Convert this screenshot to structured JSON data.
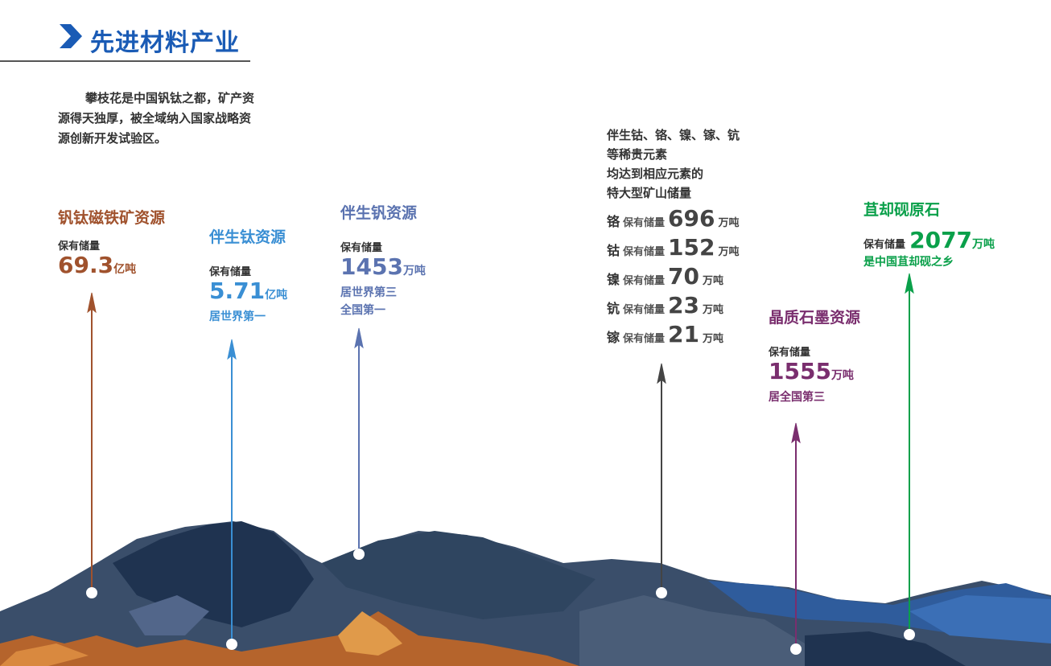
{
  "header": {
    "title": "先进材料产业",
    "icon": "chevron-right-icon",
    "color": "#1a5bb5"
  },
  "intro": "攀枝花是中国钒钛之都，矿产资源得天独厚，被全域纳入国家战略资源创新开发试验区。",
  "resources": [
    {
      "name": "钒钛磁铁矿资源",
      "label": "保有储量",
      "value": "69.3",
      "unit": "亿吨",
      "notes": [],
      "color": "#a0522d"
    },
    {
      "name": "伴生钛资源",
      "label": "保有储量",
      "value": "5.71",
      "unit": "亿吨",
      "notes": [
        "居世界第一"
      ],
      "color": "#3a8fd4"
    },
    {
      "name": "伴生钒资源",
      "label": "保有储量",
      "value": "1453",
      "unit": "万吨",
      "notes": [
        "居世界第三",
        "全国第一"
      ],
      "color": "#5b73b0"
    },
    {
      "name": "晶质石墨资源",
      "label": "保有储量",
      "value": "1555",
      "unit": "万吨",
      "notes": [
        "居全国第三"
      ],
      "color": "#7a2e6e"
    },
    {
      "name": "苴却砚原石",
      "label": "保有储量",
      "value": "2077",
      "unit": "万吨",
      "notes": [
        "是中国苴却砚之乡"
      ],
      "color": "#0aa04a"
    }
  ],
  "rare": {
    "lines": [
      "伴生钴、铬、镍、镓、钪",
      "等稀贵元素",
      "均达到相应元素的",
      "特大型矿山储量"
    ],
    "color": "#444444",
    "items": [
      {
        "element": "铬",
        "label": "保有储量",
        "value": "696",
        "unit": "万吨"
      },
      {
        "element": "钴",
        "label": "保有储量",
        "value": "152",
        "unit": "万吨"
      },
      {
        "element": "镍",
        "label": "保有储量",
        "value": "70",
        "unit": "万吨"
      },
      {
        "element": "钪",
        "label": "保有储量",
        "value": "23",
        "unit": "万吨"
      },
      {
        "element": "镓",
        "label": "保有储量",
        "value": "21",
        "unit": "万吨"
      }
    ]
  }
}
